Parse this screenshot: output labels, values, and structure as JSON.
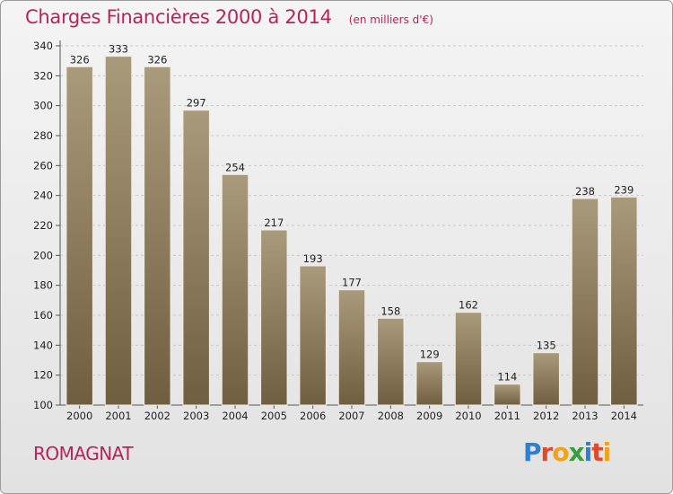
{
  "header": {
    "title": "Charges Financières 2000 à 2014",
    "subtitle": "(en milliers d'€)"
  },
  "footer": {
    "commune": "ROMAGNAT",
    "logo": [
      "P",
      "r",
      "o",
      "x",
      "i",
      "t",
      "i"
    ],
    "logo_colors": [
      "#2e7fd0",
      "#e0492c",
      "#f0a21a",
      "#3a9e3a",
      "#2e7fd0",
      "#e0492c",
      "#f0a21a"
    ]
  },
  "colors": {
    "title": "#b5245a",
    "bar_top": "#aa9a7c",
    "bar_bottom": "#6f5e3f",
    "grid": "#c8c8c8"
  },
  "chart_data": {
    "type": "bar",
    "title": "Charges Financières 2000 à 2014",
    "subtitle": "(en milliers d'€)",
    "xlabel": "",
    "ylabel": "",
    "categories": [
      "2000",
      "2001",
      "2002",
      "2003",
      "2004",
      "2005",
      "2006",
      "2007",
      "2008",
      "2009",
      "2010",
      "2011",
      "2012",
      "2013",
      "2014"
    ],
    "values": [
      326,
      333,
      326,
      297,
      254,
      217,
      193,
      177,
      158,
      129,
      162,
      114,
      135,
      238,
      239
    ],
    "ylim": [
      100,
      340
    ],
    "yticks": [
      100,
      120,
      140,
      160,
      180,
      200,
      220,
      240,
      260,
      280,
      300,
      320,
      340
    ],
    "grid": true,
    "legend": "none"
  }
}
